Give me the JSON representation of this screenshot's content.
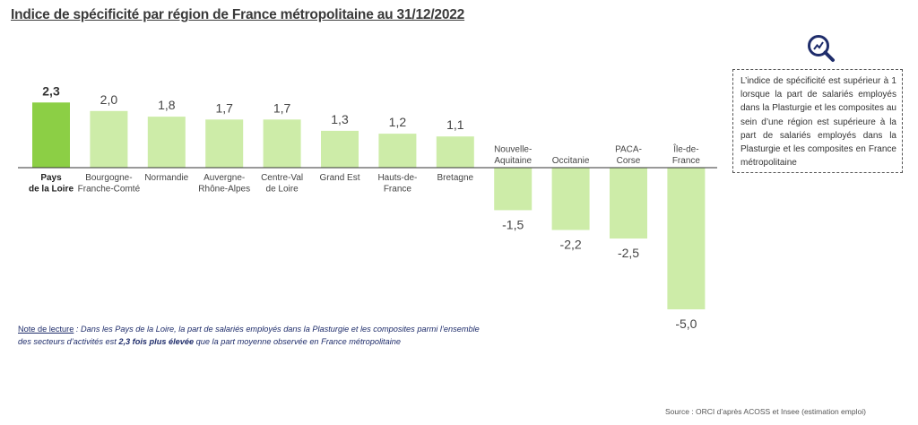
{
  "title": "Indice de spécificité par région de France métropolitaine au 31/12/2022",
  "info_box": "L’indice de spécificité est supérieur à 1 lorsque la part de salariés employés dans la Plasturgie et les composites au sein d’une région est supérieure à la part de salariés employés dans la Plasturgie et les composites en France métropolitaine",
  "note": {
    "label": "Note de lecture",
    "part1": " : Dans les Pays de la Loire, la part de salariés employés dans la Plasturgie et les composites parmi l’ensemble des secteurs d’activités est ",
    "bold": "2,3 fois plus élevée",
    "part2": " que la part moyenne observée en France métropolitaine"
  },
  "source": "Source : ORCI d’après ACOSS et Insee (estimation emploi)",
  "colors": {
    "highlight": "#8ccf45",
    "bar": "#cdeca8",
    "axis": "#333333",
    "note_text": "#1f2d6b",
    "icon": "#1f2d6b"
  },
  "icon": "magnifier-chart-icon",
  "chart_data": {
    "type": "bar",
    "categories": [
      [
        "Pays",
        "de la Loire"
      ],
      [
        "Bourgogne-",
        "Franche-Comté"
      ],
      [
        "Normandie"
      ],
      [
        "Auvergne-",
        "Rhône-Alpes"
      ],
      [
        "Centre-Val",
        "de Loire"
      ],
      [
        "Grand Est"
      ],
      [
        "Hauts-de-",
        "France"
      ],
      [
        "Bretagne"
      ],
      [
        "Nouvelle-",
        "Aquitaine"
      ],
      [
        "Occitanie"
      ],
      [
        "PACA-",
        "Corse"
      ],
      [
        "Île-de-",
        "France"
      ]
    ],
    "values": [
      2.3,
      2.0,
      1.8,
      1.7,
      1.7,
      1.3,
      1.2,
      1.1,
      -1.5,
      -2.2,
      -2.5,
      -5.0
    ],
    "value_labels": [
      "2,3",
      "2,0",
      "1,8",
      "1,7",
      "1,7",
      "1,3",
      "1,2",
      "1,1",
      "-1,5",
      "-2,2",
      "-2,5",
      "-5,0"
    ],
    "highlight_index": 0,
    "ylim": [
      -5.0,
      2.3
    ]
  }
}
